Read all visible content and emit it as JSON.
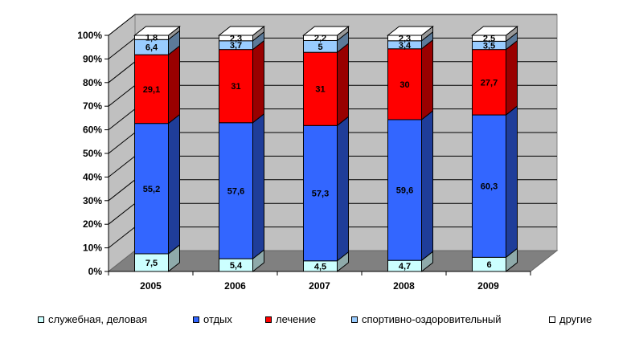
{
  "chart_data": {
    "type": "bar",
    "stacked": true,
    "three_d": true,
    "categories": [
      "2005",
      "2006",
      "2007",
      "2008",
      "2009"
    ],
    "series": [
      {
        "name": "служебная, деловая",
        "color": "#ccffff",
        "side_color": "#8faaaa",
        "labels": [
          "7,5",
          "5,4",
          "4,5",
          "4,7",
          "6"
        ],
        "values": [
          7.5,
          5.4,
          4.5,
          4.7,
          6
        ]
      },
      {
        "name": "отдых",
        "color": "#3366ff",
        "side_color": "#1f3d99",
        "labels": [
          "55,2",
          "57,6",
          "57,3",
          "59,6",
          "60,3"
        ],
        "values": [
          55.2,
          57.6,
          57.3,
          59.6,
          60.3
        ]
      },
      {
        "name": "лечение",
        "color": "#ff0000",
        "side_color": "#990000",
        "labels": [
          "29,1",
          "31",
          "31",
          "30",
          "27,7"
        ],
        "values": [
          29.1,
          31,
          31,
          30,
          27.7
        ]
      },
      {
        "name": "спортивно-оздоровительный",
        "color": "#99ccff",
        "side_color": "#5c7a99",
        "labels": [
          "6,4",
          "3,7",
          "5",
          "3,4",
          "3,5"
        ],
        "values": [
          6.4,
          3.7,
          5,
          3.4,
          3.5
        ]
      },
      {
        "name": "другие",
        "color": "#ffffff",
        "side_color": "#999999",
        "labels": [
          "1,8",
          "2,3",
          "2,2",
          "2,3",
          "2,5"
        ],
        "values": [
          1.8,
          2.3,
          2.2,
          2.3,
          2.5
        ]
      }
    ],
    "yticks": [
      "0%",
      "10%",
      "20%",
      "30%",
      "40%",
      "50%",
      "60%",
      "70%",
      "80%",
      "90%",
      "100%"
    ],
    "ylim": [
      0,
      100
    ],
    "grid": true,
    "legend_position": "bottom",
    "colors": {
      "wall": "#c0c0c0",
      "floor": "#808080"
    }
  }
}
